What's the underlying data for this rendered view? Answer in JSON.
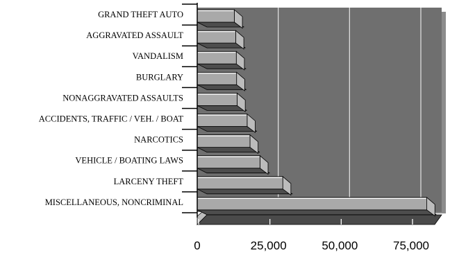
{
  "chart_data": {
    "type": "bar",
    "orientation": "horizontal",
    "style": "3d",
    "title": "",
    "xlabel": "",
    "ylabel": "",
    "categories": [
      "GRAND THEFT AUTO",
      "AGGRAVATED ASSAULT",
      "VANDALISM",
      "BURGLARY",
      "NONAGGRAVATED ASSAULTS",
      "ACCIDENTS, TRAFFIC / VEH. / BOAT",
      "NARCOTICS",
      "VEHICLE / BOATING LAWS",
      "LARCENY THEFT",
      "MISCELLANEOUS, NONCRIMINAL"
    ],
    "values": [
      13000,
      13500,
      13700,
      13800,
      14000,
      17500,
      18500,
      22000,
      30000,
      80500
    ],
    "xlim": [
      0,
      85000
    ],
    "ticks": [
      0,
      25000,
      50000,
      75000
    ],
    "tick_labels": [
      "0",
      "25,000",
      "50,000",
      "75,000"
    ],
    "grid": true,
    "legend": "none",
    "colors": {
      "wall": "#6f6f6f",
      "wall_shadow": "#8c8c8c",
      "floor": "#4a4a4a",
      "bar_front": "#a9a9a9",
      "bar_top": "#d9d9d9",
      "bar_side": "#bcbcbc",
      "bar_bottom": "#4d4d4d",
      "gridline": "#e6e6e6",
      "axis": "#000000"
    }
  }
}
